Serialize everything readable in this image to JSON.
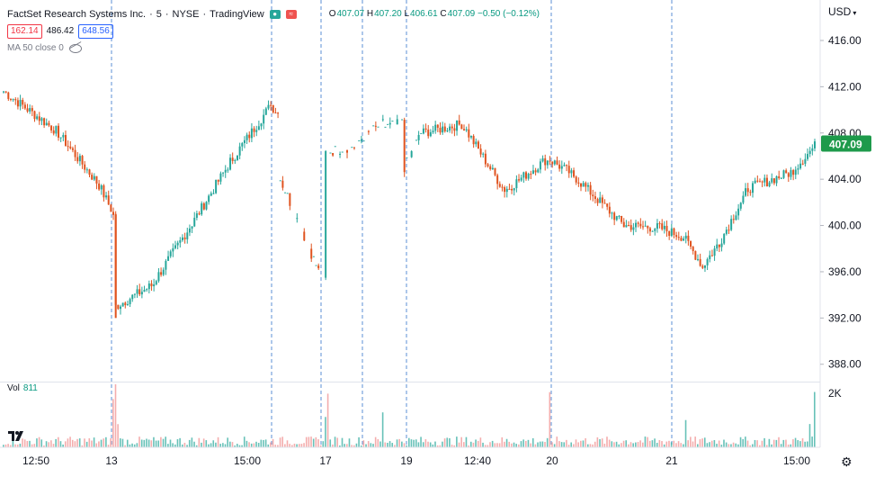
{
  "header": {
    "symbol": "FactSet Research Systems Inc.",
    "interval": "5",
    "exchange": "NYSE",
    "source": "TradingView",
    "open_label": "O",
    "open": "407.07",
    "high_label": "H",
    "high": "407.20",
    "low_label": "L",
    "low": "406.61",
    "close_label": "C",
    "close": "407.09",
    "change": "−0.50 (−0.12%)",
    "sell_price": "162.14",
    "spread": "486.42",
    "buy_price": "648.56",
    "ma_label": "MA 50 close 0",
    "currency": "USD"
  },
  "volume": {
    "label": "Vol",
    "value": "811",
    "axis_label": "2K"
  },
  "colors": {
    "up": "#26a69a",
    "down": "#e0531f",
    "grid": "#5b8fd6",
    "last_price_bg": "#1e9a4b",
    "vol_up": "#26a69a",
    "vol_down": "#ef8a8a"
  },
  "icons": {
    "settings": "gear-icon",
    "logo": "tradingview-logo-icon",
    "visibility": "eye-off-icon"
  },
  "chart_data": {
    "type": "candlestick",
    "ylim": [
      386.5,
      419.5
    ],
    "y_ticks": [
      "388.00",
      "392.00",
      "396.00",
      "400.00",
      "404.00",
      "408.00",
      "412.00",
      "416.00"
    ],
    "x_ticks": [
      "12:50",
      "13",
      "15:00",
      "17",
      "19",
      "12:40",
      "20",
      "21",
      "15:00"
    ],
    "session_breaks": 7,
    "last_price": "407.09",
    "last_price_value": 407.09,
    "segments": [
      {
        "from": 0,
        "to": 22,
        "start": 411.6,
        "end": 408.2
      },
      {
        "from": 22,
        "to": 40,
        "start": 408.2,
        "end": 403.5
      },
      {
        "from": 40,
        "to": 46,
        "start": 403.5,
        "end": 401.0
      },
      {
        "from": 46,
        "to": 47,
        "start": 401.0,
        "end": 393.0
      },
      {
        "from": 47,
        "to": 62,
        "start": 393.0,
        "end": 394.8
      },
      {
        "from": 62,
        "to": 80,
        "start": 394.8,
        "end": 400.5
      },
      {
        "from": 80,
        "to": 95,
        "start": 400.5,
        "end": 405.5
      },
      {
        "from": 95,
        "to": 112,
        "start": 405.5,
        "end": 410.4
      },
      {
        "from": 112,
        "to": 116,
        "start": 410.4,
        "end": 409.5
      },
      {
        "from": 116,
        "to": 135,
        "start": 404.0,
        "end": 394.6
      },
      {
        "from": 135,
        "to": 150,
        "start": 406.3,
        "end": 407.0
      },
      {
        "from": 150,
        "to": 160,
        "start": 407.5,
        "end": 409.0
      },
      {
        "from": 160,
        "to": 168,
        "start": 408.5,
        "end": 408.9
      },
      {
        "from": 168,
        "to": 175,
        "start": 405.0,
        "end": 408.0
      },
      {
        "from": 175,
        "to": 193,
        "start": 408.0,
        "end": 408.8
      },
      {
        "from": 193,
        "to": 210,
        "start": 408.5,
        "end": 403.0
      },
      {
        "from": 210,
        "to": 228,
        "start": 403.0,
        "end": 405.8
      },
      {
        "from": 228,
        "to": 238,
        "start": 405.8,
        "end": 404.5
      },
      {
        "from": 238,
        "to": 260,
        "start": 404.5,
        "end": 400.0
      },
      {
        "from": 260,
        "to": 275,
        "start": 400.0,
        "end": 399.8
      },
      {
        "from": 275,
        "to": 285,
        "start": 399.8,
        "end": 399.0
      },
      {
        "from": 285,
        "to": 293,
        "start": 399.0,
        "end": 396.5
      },
      {
        "from": 293,
        "to": 300,
        "start": 396.5,
        "end": 398.5
      },
      {
        "from": 300,
        "to": 312,
        "start": 398.5,
        "end": 403.2
      },
      {
        "from": 312,
        "to": 330,
        "start": 403.2,
        "end": 404.6
      },
      {
        "from": 330,
        "to": 341,
        "start": 404.6,
        "end": 407.1
      }
    ],
    "total_bars": 341
  }
}
